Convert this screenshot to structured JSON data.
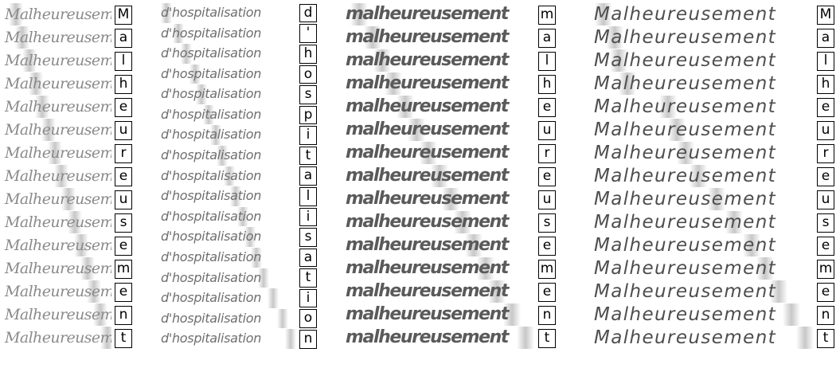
{
  "panels": [
    {
      "word": "Malheureusement",
      "chars": [
        "M",
        "a",
        "l",
        "h",
        "e",
        "u",
        "r",
        "e",
        "u",
        "s",
        "e",
        "m",
        "e",
        "n",
        "t"
      ],
      "attention": [
        0.12,
        0.18,
        0.24,
        0.3,
        0.36,
        0.42,
        0.48,
        0.54,
        0.6,
        0.66,
        0.72,
        0.78,
        0.84,
        0.9,
        0.96
      ]
    },
    {
      "word": "d'hospitalisation",
      "chars": [
        "d",
        "'",
        "h",
        "o",
        "s",
        "p",
        "i",
        "t",
        "a",
        "l",
        "i",
        "s",
        "a",
        "t",
        "i",
        "o",
        "n"
      ],
      "attention": [
        0.05,
        0.14,
        0.2,
        0.26,
        0.31,
        0.36,
        0.41,
        0.46,
        0.51,
        0.56,
        0.61,
        0.66,
        0.71,
        0.76,
        0.83,
        0.9,
        0.96
      ]
    },
    {
      "word": "malheureusement",
      "chars": [
        "m",
        "a",
        "l",
        "h",
        "e",
        "u",
        "r",
        "e",
        "u",
        "s",
        "e",
        "m",
        "e",
        "n",
        "t"
      ],
      "attention": [
        0.08,
        0.15,
        0.2,
        0.26,
        0.32,
        0.38,
        0.44,
        0.5,
        0.56,
        0.62,
        0.68,
        0.74,
        0.8,
        0.88,
        0.95
      ]
    },
    {
      "word": "Malheureusement",
      "chars": [
        "M",
        "a",
        "l",
        "h",
        "e",
        "u",
        "r",
        "e",
        "u",
        "s",
        "e",
        "m",
        "e",
        "n",
        "t"
      ],
      "attention": [
        0.05,
        0.1,
        0.12,
        0.16,
        0.34,
        0.38,
        0.42,
        0.48,
        0.56,
        0.64,
        0.72,
        0.78,
        0.84,
        0.9,
        0.96
      ]
    }
  ]
}
